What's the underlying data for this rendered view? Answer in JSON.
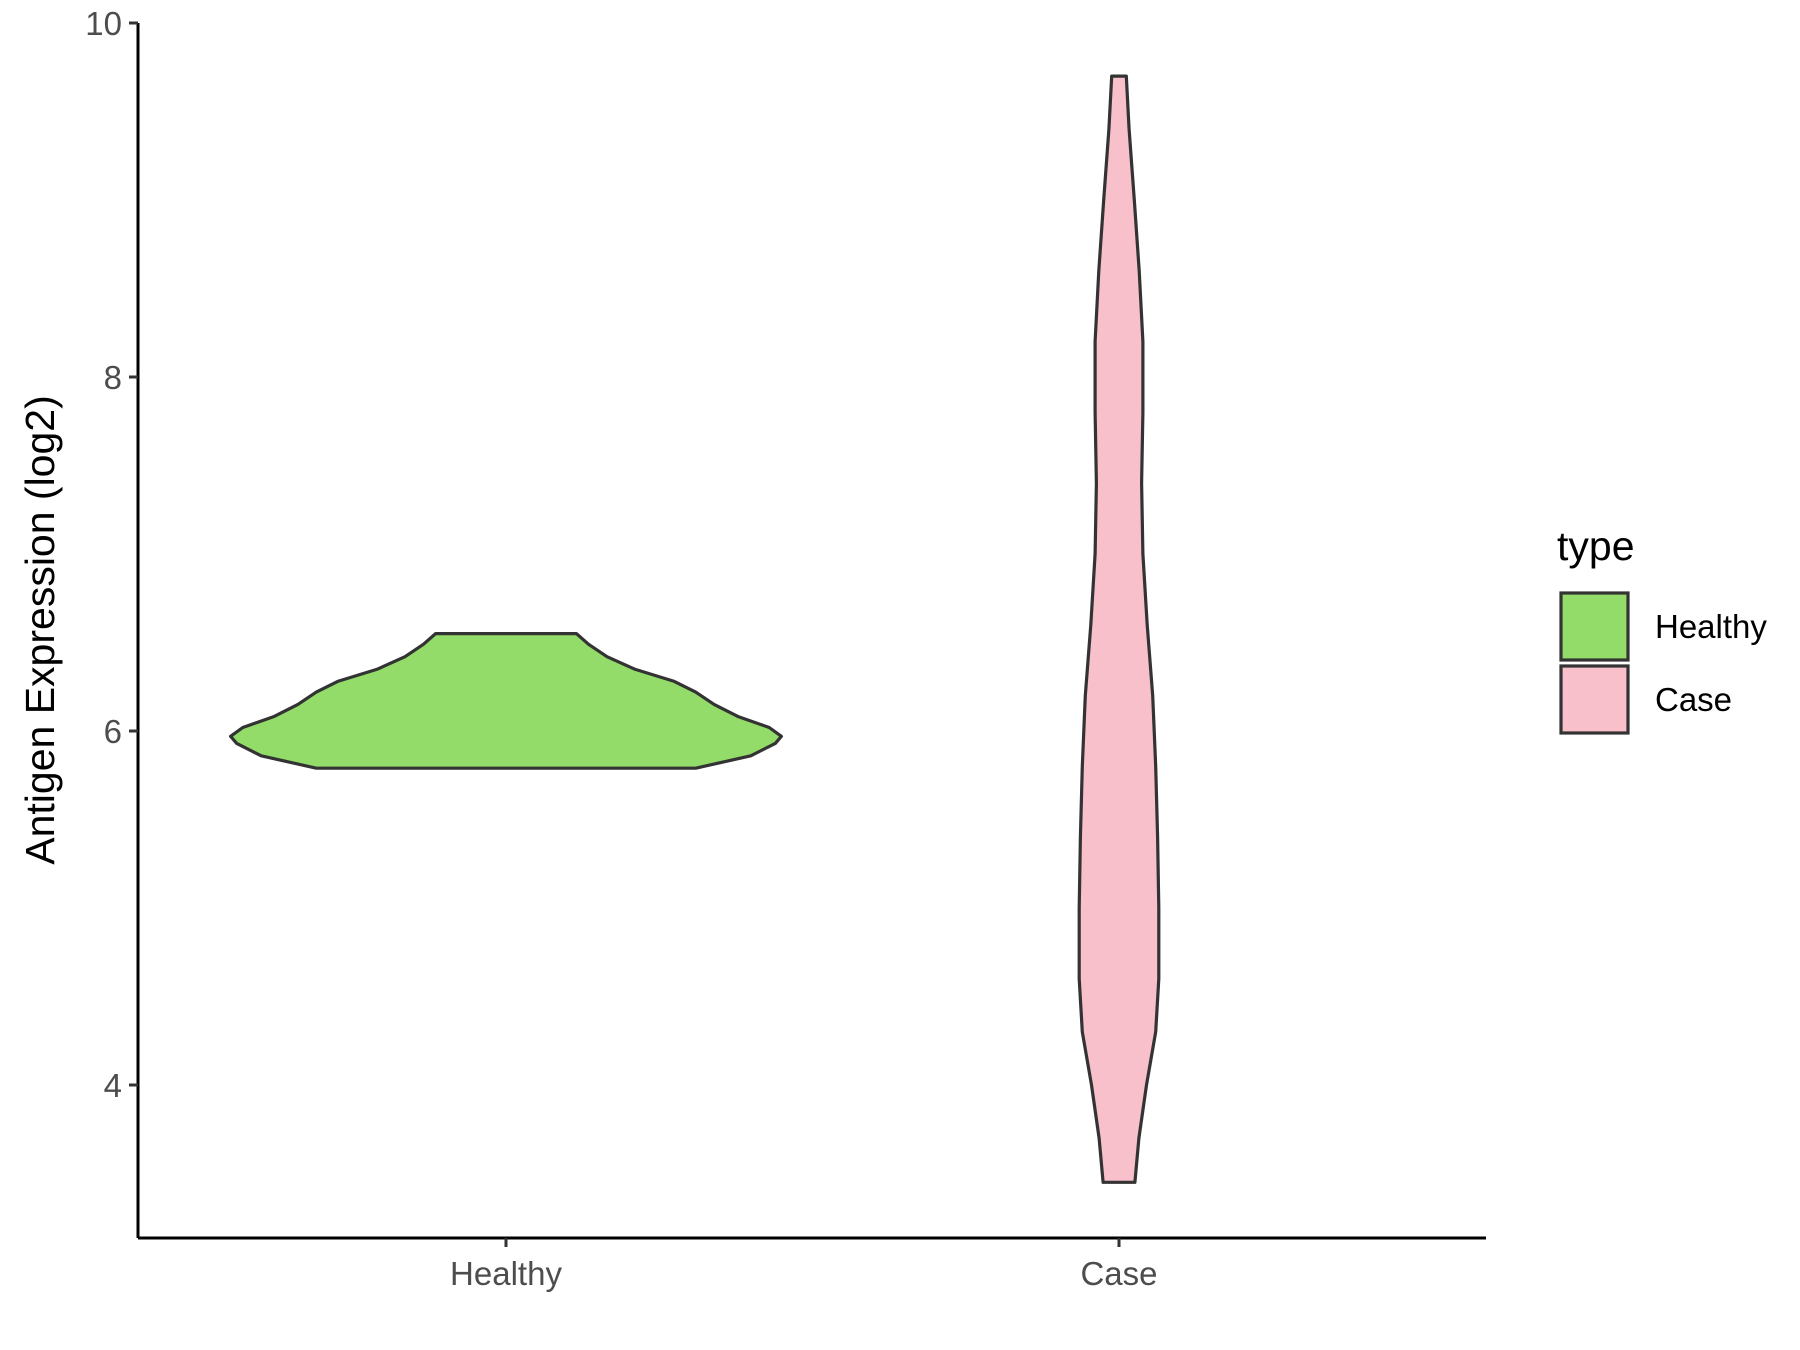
{
  "chart_data": {
    "type": "violin",
    "title": "",
    "xlabel": "",
    "ylabel": "Antigen Expression (log2)",
    "categories": [
      "Healthy",
      "Case"
    ],
    "y_ticks": [
      4,
      6,
      8,
      10
    ],
    "ylim": [
      3.15,
      10
    ],
    "grid": false,
    "legend": {
      "title": "type",
      "position": "right",
      "entries": [
        {
          "label": "Healthy",
          "color": "#93dc6a"
        },
        {
          "label": "Case",
          "color": "#f7c0cb"
        }
      ]
    },
    "violins": [
      {
        "category": "Healthy",
        "color": "#93dc6a",
        "min": 5.79,
        "max": 6.55,
        "density": [
          {
            "y": 5.79,
            "w": 0.62
          },
          {
            "y": 5.86,
            "w": 0.8
          },
          {
            "y": 5.93,
            "w": 0.88
          },
          {
            "y": 5.97,
            "w": 0.9
          },
          {
            "y": 6.02,
            "w": 0.86
          },
          {
            "y": 6.08,
            "w": 0.76
          },
          {
            "y": 6.15,
            "w": 0.68
          },
          {
            "y": 6.22,
            "w": 0.62
          },
          {
            "y": 6.28,
            "w": 0.55
          },
          {
            "y": 6.35,
            "w": 0.42
          },
          {
            "y": 6.42,
            "w": 0.33
          },
          {
            "y": 6.49,
            "w": 0.27
          },
          {
            "y": 6.55,
            "w": 0.23
          }
        ]
      },
      {
        "category": "Case",
        "color": "#f7c0cb",
        "min": 3.45,
        "max": 9.7,
        "density": [
          {
            "y": 3.45,
            "w": 0.052
          },
          {
            "y": 3.7,
            "w": 0.065
          },
          {
            "y": 4.0,
            "w": 0.09
          },
          {
            "y": 4.3,
            "w": 0.12
          },
          {
            "y": 4.6,
            "w": 0.13
          },
          {
            "y": 5.0,
            "w": 0.13
          },
          {
            "y": 5.4,
            "w": 0.126
          },
          {
            "y": 5.8,
            "w": 0.12
          },
          {
            "y": 6.2,
            "w": 0.11
          },
          {
            "y": 6.6,
            "w": 0.092
          },
          {
            "y": 7.0,
            "w": 0.078
          },
          {
            "y": 7.4,
            "w": 0.074
          },
          {
            "y": 7.8,
            "w": 0.078
          },
          {
            "y": 8.2,
            "w": 0.078
          },
          {
            "y": 8.6,
            "w": 0.066
          },
          {
            "y": 9.0,
            "w": 0.05
          },
          {
            "y": 9.4,
            "w": 0.033
          },
          {
            "y": 9.7,
            "w": 0.024
          }
        ]
      }
    ]
  }
}
